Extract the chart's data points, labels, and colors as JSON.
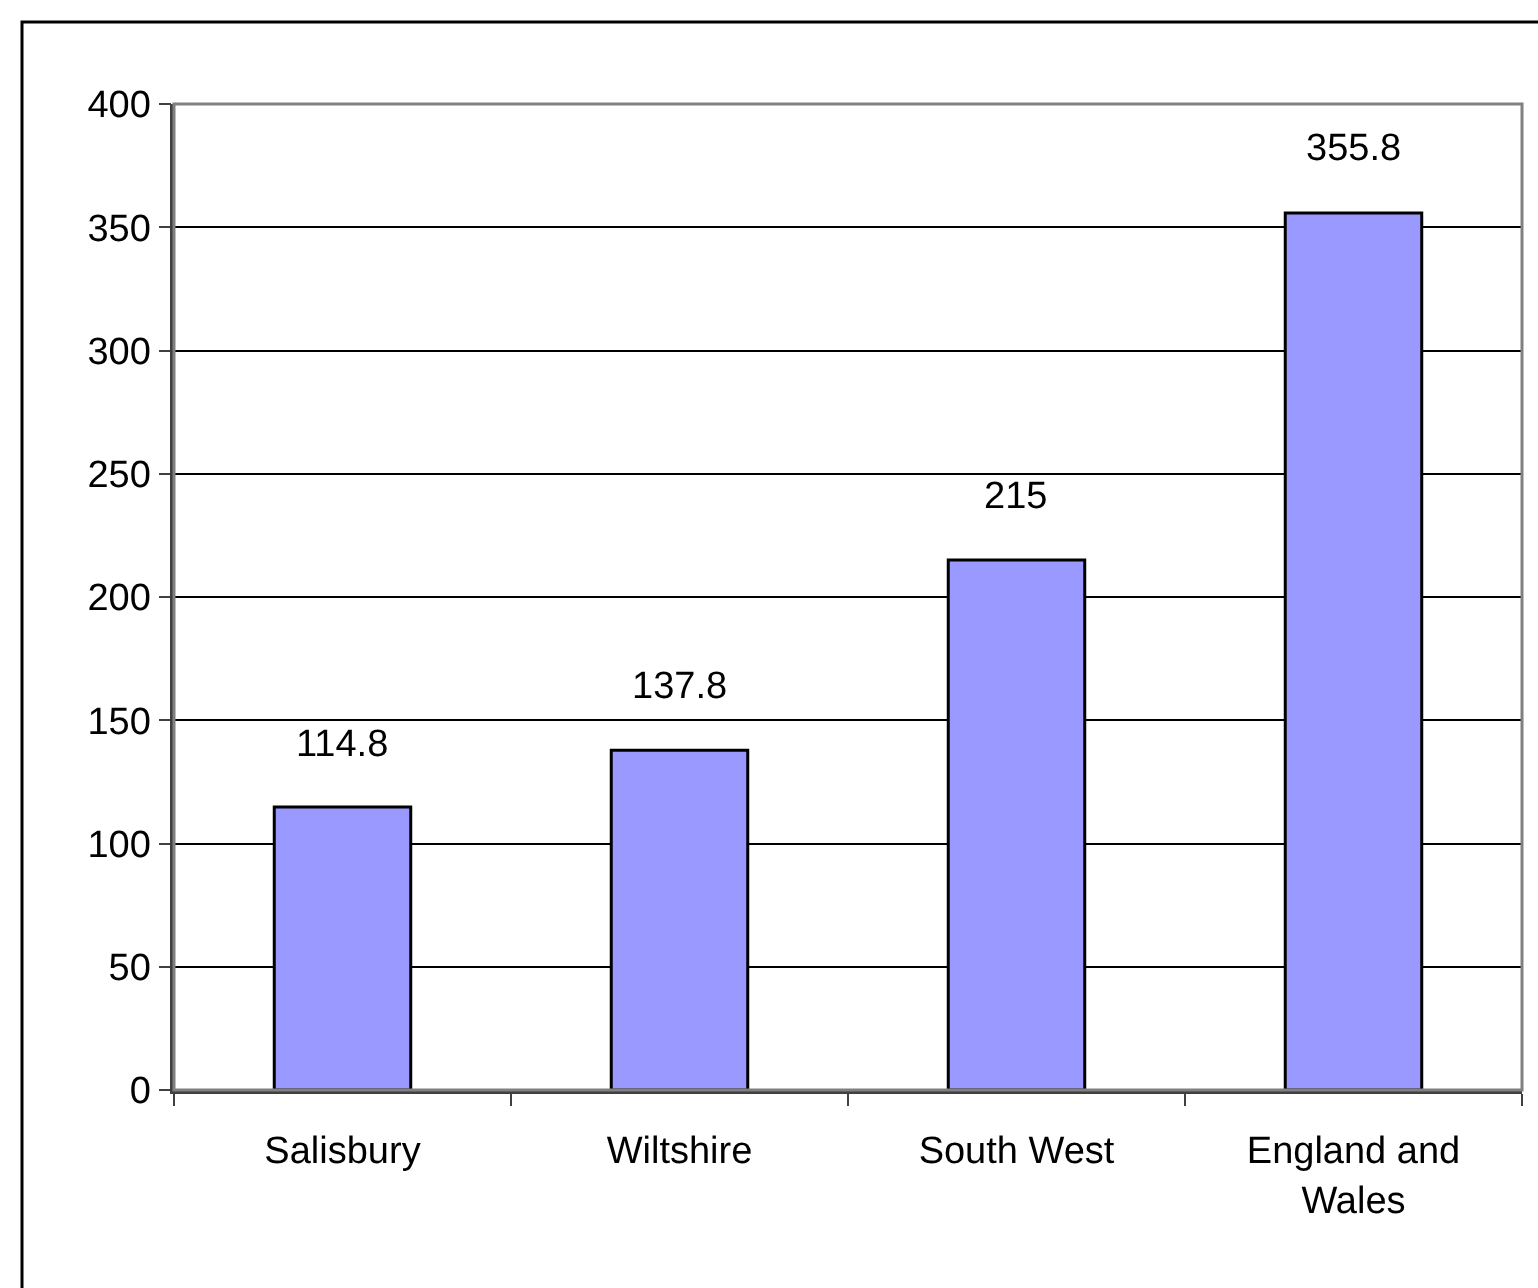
{
  "chart_data": {
    "type": "bar",
    "categories": [
      "Salisbury",
      "Wiltshire",
      "South West",
      "England and Wales"
    ],
    "values": [
      114.8,
      137.8,
      215,
      355.8
    ],
    "color": "#9999ff",
    "ylim": [
      0,
      400
    ],
    "yticks": [
      0,
      50,
      100,
      150,
      200,
      250,
      300,
      350,
      400
    ],
    "grid": "y",
    "data_labels": true
  }
}
